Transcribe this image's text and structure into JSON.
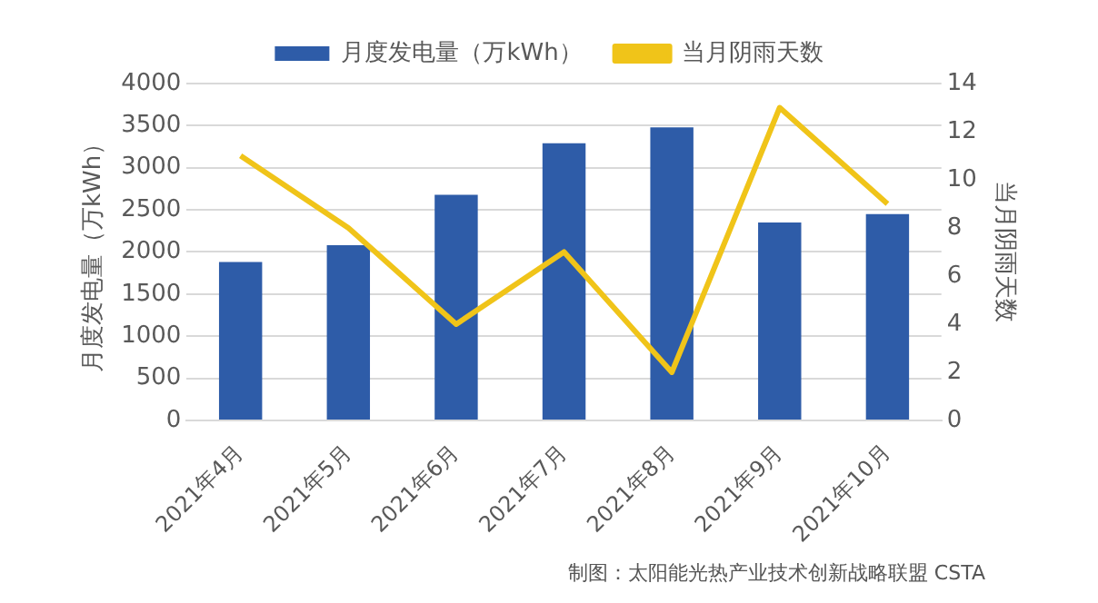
{
  "chart_data": {
    "type": "bar",
    "categories": [
      "2021年4月",
      "2021年5月",
      "2021年6月",
      "2021年7月",
      "2021年8月",
      "2021年9月",
      "2021年10月"
    ],
    "series": [
      {
        "name": "月度发电量（万kWh）",
        "color": "#2e5ca8",
        "values": [
          1880,
          2080,
          2680,
          3290,
          3480,
          2350,
          2450
        ]
      },
      {
        "name": "当月阴雨天数",
        "type": "line",
        "axis": "y2",
        "color": "#f0c419",
        "marker": "none",
        "values": [
          11,
          8,
          4,
          7,
          2,
          13,
          9
        ]
      }
    ],
    "ylabel": "月度发电量（万kWh）",
    "y2label": "当月阴雨天数",
    "ylim": [
      0,
      4000
    ],
    "yticks": [
      0,
      500,
      1000,
      1500,
      2000,
      2500,
      3000,
      3500,
      4000
    ],
    "y2lim": [
      0,
      14
    ],
    "y2ticks": [
      0,
      2,
      4,
      6,
      8,
      10,
      12,
      14
    ],
    "grid": "y",
    "legend": "top",
    "annotations": [
      "制图：太阳能光热产业技术创新战略联盟 CSTA"
    ]
  }
}
